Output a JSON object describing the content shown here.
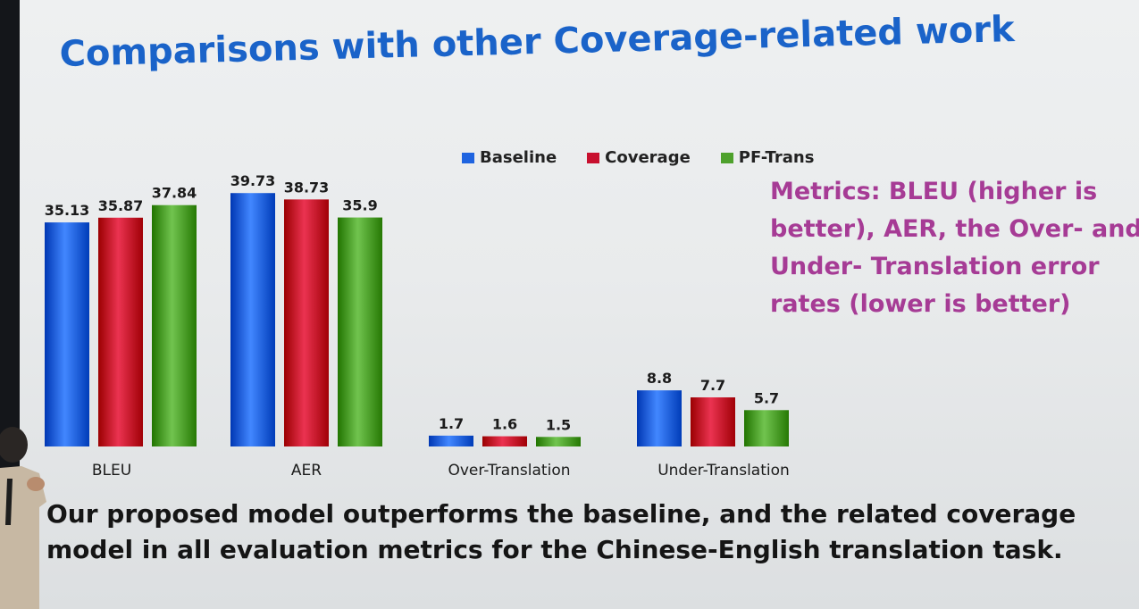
{
  "slide": {
    "title": "Comparisons with other Coverage-related work",
    "metrics_note": "Metrics: BLEU (higher is better), AER, the Over- and Under- Translation error rates (lower is better)",
    "conclusion": "Our proposed model outperforms the baseline, and the related coverage model in all evaluation metrics for the Chinese-English translation task."
  },
  "legend": [
    {
      "label": "Baseline",
      "color": "#1f64e0"
    },
    {
      "label": "Coverage",
      "color": "#c8102e"
    },
    {
      "label": "PF-Trans",
      "color": "#4ea12c"
    }
  ],
  "chart_data": {
    "type": "bar",
    "categories": [
      "BLEU",
      "AER",
      "Over-Translation",
      "Under-Translation"
    ],
    "series": [
      {
        "name": "Baseline",
        "values": [
          35.13,
          39.73,
          1.7,
          8.8
        ]
      },
      {
        "name": "Coverage",
        "values": [
          35.87,
          38.73,
          1.6,
          7.7
        ]
      },
      {
        "name": "PF-Trans",
        "values": [
          37.84,
          35.9,
          1.5,
          5.7
        ]
      }
    ],
    "data_labels": true,
    "legend_position": "top",
    "grid": false,
    "ylim": [
      0,
      42
    ]
  }
}
